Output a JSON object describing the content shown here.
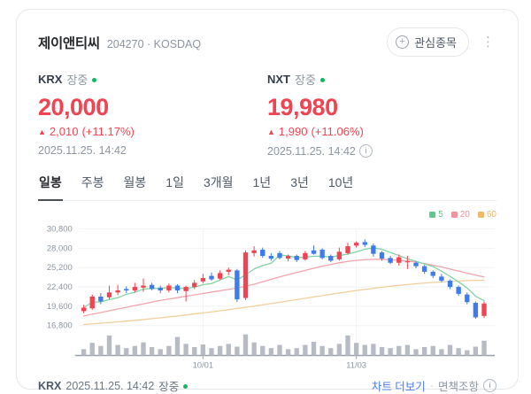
{
  "header": {
    "title": "제이앤티씨",
    "code_line": "204270 · KOSDAQ",
    "watchlist_button": "관심종목"
  },
  "quotes": [
    {
      "exchange": "KRX",
      "session": "장중",
      "price": "20,000",
      "arrow": "▲",
      "change": "2,010",
      "change_pct": "(+11.17%)",
      "timestamp": "2025.11.25. 14:42"
    },
    {
      "exchange": "NXT",
      "session": "장중",
      "price": "19,980",
      "arrow": "▲",
      "change": "1,990",
      "change_pct": "(+11.06%)",
      "timestamp": "2025.11.25. 14:42"
    }
  ],
  "tabs": [
    {
      "label": "일봉",
      "active": true
    },
    {
      "label": "주봉",
      "active": false
    },
    {
      "label": "월봉",
      "active": false
    },
    {
      "label": "1일",
      "active": false
    },
    {
      "label": "3개월",
      "active": false
    },
    {
      "label": "1년",
      "active": false
    },
    {
      "label": "3년",
      "active": false
    },
    {
      "label": "10년",
      "active": false
    }
  ],
  "footer": {
    "exchange": "KRX",
    "timestamp": "2025.11.25. 14:42",
    "session": "장중",
    "chart_more_link": "차트 더보기",
    "separator": "·",
    "disclaimer_link": "면책조항"
  },
  "chart_data": {
    "type": "candlestick",
    "title": "제이앤티씨 일봉 차트",
    "ylim": [
      16800,
      30800
    ],
    "y_ticks": [
      30800,
      28000,
      25200,
      22400,
      19600,
      16800
    ],
    "x_ticks": [
      {
        "index": 14,
        "label": "10/01"
      },
      {
        "index": 32,
        "label": "11/03"
      }
    ],
    "legend": [
      {
        "label": "5",
        "color": "#5ec98e"
      },
      {
        "label": "20",
        "color": "#f2949f"
      },
      {
        "label": "60",
        "color": "#f0b868"
      }
    ],
    "candles": [
      [
        18900,
        19800,
        18600,
        19400
      ],
      [
        19300,
        21300,
        19100,
        21000
      ],
      [
        21000,
        21500,
        19900,
        20300
      ],
      [
        20900,
        22600,
        20600,
        21600
      ],
      [
        21600,
        22700,
        21200,
        21900
      ],
      [
        22100,
        22500,
        21500,
        21900
      ],
      [
        21900,
        23000,
        21600,
        22400
      ],
      [
        22300,
        23600,
        21700,
        22600
      ],
      [
        22700,
        23000,
        21900,
        22100
      ],
      [
        22300,
        22600,
        21500,
        21900
      ],
      [
        21900,
        22900,
        21600,
        22600
      ],
      [
        22600,
        22800,
        21500,
        21900
      ],
      [
        21800,
        22600,
        20300,
        22400
      ],
      [
        22400,
        23400,
        22100,
        23000
      ],
      [
        23200,
        24300,
        22900,
        23700
      ],
      [
        24000,
        24500,
        23300,
        23500
      ],
      [
        23600,
        24800,
        23400,
        24400
      ],
      [
        24600,
        25200,
        24100,
        24900
      ],
      [
        24800,
        25000,
        20200,
        20600
      ],
      [
        20800,
        27700,
        20500,
        27400
      ],
      [
        27300,
        28300,
        26800,
        27700
      ],
      [
        27800,
        28100,
        26600,
        26900
      ],
      [
        26900,
        27300,
        26200,
        26500
      ],
      [
        27300,
        27600,
        26400,
        26600
      ],
      [
        26500,
        27100,
        26100,
        26900
      ],
      [
        26900,
        27100,
        26000,
        26300
      ],
      [
        26400,
        27600,
        26200,
        27300
      ],
      [
        27700,
        28400,
        27100,
        27200
      ],
      [
        27800,
        28000,
        26400,
        26600
      ],
      [
        26900,
        27100,
        26000,
        26200
      ],
      [
        26400,
        28100,
        26200,
        27500
      ],
      [
        27300,
        28800,
        27100,
        28300
      ],
      [
        28400,
        29000,
        28100,
        28800
      ],
      [
        28900,
        29300,
        28200,
        28500
      ],
      [
        28400,
        28700,
        26800,
        27200
      ],
      [
        27400,
        27600,
        26200,
        26500
      ],
      [
        26600,
        26900,
        25700,
        25900
      ],
      [
        25900,
        27100,
        25500,
        26700
      ],
      [
        26000,
        26900,
        25000,
        26100
      ],
      [
        25900,
        26100,
        25100,
        25400
      ],
      [
        25400,
        25600,
        24300,
        24600
      ],
      [
        24600,
        24800,
        23700,
        24000
      ],
      [
        23900,
        24300,
        23100,
        23300
      ],
      [
        23300,
        23500,
        22100,
        22400
      ],
      [
        22400,
        22600,
        21100,
        21400
      ],
      [
        21300,
        21600,
        19900,
        20200
      ],
      [
        20100,
        20300,
        17800,
        17990
      ],
      [
        18200,
        20300,
        17900,
        20000
      ]
    ],
    "volumes": [
      0.3,
      0.6,
      0.45,
      0.95,
      0.5,
      0.35,
      0.45,
      0.62,
      0.4,
      0.3,
      0.45,
      0.88,
      0.55,
      0.4,
      0.52,
      0.35,
      0.45,
      0.55,
      0.42,
      1.0,
      0.62,
      0.45,
      0.35,
      0.5,
      0.3,
      0.35,
      0.5,
      0.65,
      0.45,
      0.35,
      0.55,
      0.95,
      0.6,
      0.5,
      0.55,
      0.4,
      0.35,
      0.45,
      0.5,
      0.3,
      0.4,
      0.45,
      0.3,
      0.5,
      0.35,
      0.25,
      0.42,
      0.7
    ],
    "ma20": [
      18200,
      18450,
      18700,
      18950,
      19200,
      19450,
      19700,
      19950,
      20200,
      20450,
      20650,
      20850,
      21050,
      21250,
      21450,
      21650,
      21850,
      22050,
      22250,
      22500,
      22800,
      23150,
      23500,
      23850,
      24200,
      24500,
      24800,
      25100,
      25400,
      25650,
      25900,
      26100,
      26250,
      26350,
      26400,
      26400,
      26350,
      26250,
      26150,
      26000,
      25800,
      25550,
      25300,
      25000,
      24700,
      24400,
      24100,
      23850
    ],
    "ma60": [
      16950,
      17050,
      17150,
      17250,
      17350,
      17450,
      17560,
      17680,
      17800,
      17930,
      18060,
      18200,
      18340,
      18490,
      18640,
      18790,
      18950,
      19110,
      19280,
      19450,
      19630,
      19810,
      20000,
      20190,
      20380,
      20570,
      20760,
      20950,
      21140,
      21330,
      21520,
      21700,
      21880,
      22050,
      22210,
      22360,
      22500,
      22630,
      22750,
      22860,
      22960,
      23050,
      23130,
      23200,
      23260,
      23310,
      23350,
      23380
    ],
    "colors": {
      "up": "#f04452",
      "down": "#3d7bf0",
      "ma5": "#83d3a6",
      "ma20": "#f2a4ad",
      "ma60": "#f3cf9d",
      "volume": "#b7bcc4",
      "grid": "#f1f2f4",
      "axis": "#9aa0a8",
      "tick_text": "#8b95a1"
    }
  }
}
